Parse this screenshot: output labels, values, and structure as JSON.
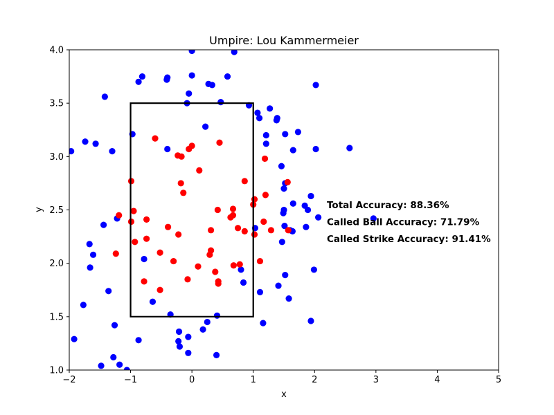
{
  "chart_data": {
    "type": "scatter",
    "title": "Umpire: Lou Kammermeier",
    "xlabel": "x",
    "ylabel": "y",
    "xlim": [
      -2,
      5
    ],
    "ylim": [
      1.0,
      4.0
    ],
    "xticks": [
      "−2",
      "−1",
      "0",
      "1",
      "2",
      "3",
      "4",
      "5"
    ],
    "xtick_values": [
      -2,
      -1,
      0,
      1,
      2,
      3,
      4,
      5
    ],
    "yticks": [
      "1.0",
      "1.5",
      "2.0",
      "2.5",
      "3.0",
      "3.5",
      "4.0"
    ],
    "ytick_values": [
      1.0,
      1.5,
      2.0,
      2.5,
      3.0,
      3.5,
      4.0
    ],
    "grid": false,
    "strike_zone": {
      "x": [
        -1,
        1
      ],
      "y": [
        1.5,
        3.5
      ],
      "color": "#000000"
    },
    "annotations": [
      {
        "text": "Total Accuracy: 88.36%",
        "x": 2.2,
        "y": 2.55
      },
      {
        "text": "Called Ball Accuracy: 71.79%",
        "x": 2.2,
        "y": 2.39
      },
      {
        "text": "Called Strike Accuracy: 91.41%",
        "x": 2.2,
        "y": 2.23
      }
    ],
    "series": [
      {
        "color": "#0000ff",
        "points": [
          [
            0.0,
            3.99
          ],
          [
            0.69,
            3.98
          ],
          [
            -0.81,
            3.75
          ],
          [
            -0.4,
            3.74
          ],
          [
            -0.41,
            3.72
          ],
          [
            0.0,
            3.76
          ],
          [
            0.58,
            3.75
          ],
          [
            -0.87,
            3.7
          ],
          [
            0.27,
            3.68
          ],
          [
            0.33,
            3.67
          ],
          [
            2.02,
            3.67
          ],
          [
            -1.42,
            3.56
          ],
          [
            -0.05,
            3.59
          ],
          [
            0.47,
            3.51
          ],
          [
            -0.08,
            3.5
          ],
          [
            0.93,
            3.48
          ],
          [
            1.27,
            3.45
          ],
          [
            1.07,
            3.41
          ],
          [
            1.1,
            3.36
          ],
          [
            1.39,
            3.36
          ],
          [
            1.38,
            3.34
          ],
          [
            0.22,
            3.28
          ],
          [
            1.73,
            3.23
          ],
          [
            1.21,
            3.2
          ],
          [
            1.52,
            3.21
          ],
          [
            -0.97,
            3.21
          ],
          [
            -1.74,
            3.14
          ],
          [
            -1.57,
            3.12
          ],
          [
            1.21,
            3.12
          ],
          [
            -1.97,
            3.05
          ],
          [
            -1.3,
            3.05
          ],
          [
            -0.4,
            3.07
          ],
          [
            1.65,
            3.06
          ],
          [
            2.02,
            3.07
          ],
          [
            2.57,
            3.08
          ],
          [
            1.46,
            2.91
          ],
          [
            1.52,
            2.75
          ],
          [
            1.5,
            2.7
          ],
          [
            1.94,
            2.63
          ],
          [
            1.65,
            2.56
          ],
          [
            1.84,
            2.54
          ],
          [
            1.89,
            2.5
          ],
          [
            1.5,
            2.5
          ],
          [
            1.49,
            2.47
          ],
          [
            2.06,
            2.43
          ],
          [
            2.96,
            2.42
          ],
          [
            -1.22,
            2.42
          ],
          [
            1.51,
            2.35
          ],
          [
            1.86,
            2.34
          ],
          [
            1.03,
            2.33
          ],
          [
            1.6,
            2.31
          ],
          [
            1.64,
            2.3
          ],
          [
            -1.44,
            2.36
          ],
          [
            -1.67,
            2.18
          ],
          [
            1.47,
            2.2
          ],
          [
            -1.61,
            2.08
          ],
          [
            -0.78,
            2.04
          ],
          [
            -1.66,
            1.96
          ],
          [
            0.8,
            1.94
          ],
          [
            1.99,
            1.94
          ],
          [
            1.52,
            1.89
          ],
          [
            0.84,
            1.82
          ],
          [
            1.41,
            1.79
          ],
          [
            -1.36,
            1.74
          ],
          [
            1.11,
            1.73
          ],
          [
            1.58,
            1.67
          ],
          [
            -0.64,
            1.64
          ],
          [
            -1.77,
            1.61
          ],
          [
            -0.35,
            1.52
          ],
          [
            0.41,
            1.51
          ],
          [
            1.94,
            1.46
          ],
          [
            0.25,
            1.45
          ],
          [
            1.16,
            1.44
          ],
          [
            -1.26,
            1.42
          ],
          [
            0.18,
            1.38
          ],
          [
            -0.21,
            1.36
          ],
          [
            -0.06,
            1.31
          ],
          [
            -1.92,
            1.29
          ],
          [
            -0.87,
            1.28
          ],
          [
            -0.22,
            1.27
          ],
          [
            -0.2,
            1.22
          ],
          [
            -0.06,
            1.16
          ],
          [
            0.4,
            1.14
          ],
          [
            -1.28,
            1.12
          ],
          [
            -1.48,
            1.04
          ],
          [
            -1.18,
            1.05
          ],
          [
            -1.06,
            1.0
          ]
        ]
      },
      {
        "color": "#ff0000",
        "points": [
          [
            -0.6,
            3.17
          ],
          [
            0.45,
            3.13
          ],
          [
            0.0,
            3.1
          ],
          [
            -0.05,
            3.07
          ],
          [
            -0.23,
            3.01
          ],
          [
            -0.17,
            3.0
          ],
          [
            1.19,
            2.98
          ],
          [
            0.12,
            2.87
          ],
          [
            -0.99,
            2.77
          ],
          [
            0.86,
            2.77
          ],
          [
            -0.18,
            2.75
          ],
          [
            1.56,
            2.76
          ],
          [
            -0.14,
            2.66
          ],
          [
            1.2,
            2.64
          ],
          [
            1.02,
            2.6
          ],
          [
            1.0,
            2.55
          ],
          [
            0.42,
            2.5
          ],
          [
            0.67,
            2.51
          ],
          [
            -0.95,
            2.49
          ],
          [
            -1.19,
            2.45
          ],
          [
            0.67,
            2.45
          ],
          [
            0.63,
            2.43
          ],
          [
            -0.74,
            2.41
          ],
          [
            -0.99,
            2.39
          ],
          [
            1.17,
            2.39
          ],
          [
            -0.39,
            2.34
          ],
          [
            0.75,
            2.33
          ],
          [
            0.31,
            2.31
          ],
          [
            1.29,
            2.31
          ],
          [
            1.57,
            2.31
          ],
          [
            0.86,
            2.3
          ],
          [
            1.02,
            2.27
          ],
          [
            -0.22,
            2.27
          ],
          [
            -0.74,
            2.23
          ],
          [
            -0.93,
            2.2
          ],
          [
            0.31,
            2.12
          ],
          [
            -0.52,
            2.1
          ],
          [
            0.29,
            2.08
          ],
          [
            -0.3,
            2.02
          ],
          [
            1.11,
            2.02
          ],
          [
            0.78,
            1.99
          ],
          [
            0.68,
            1.98
          ],
          [
            0.1,
            1.97
          ],
          [
            0.38,
            1.92
          ],
          [
            -0.07,
            1.85
          ],
          [
            0.43,
            1.83
          ],
          [
            -0.78,
            1.83
          ],
          [
            0.43,
            1.81
          ],
          [
            -0.52,
            1.75
          ],
          [
            -1.24,
            2.09
          ]
        ]
      }
    ]
  }
}
